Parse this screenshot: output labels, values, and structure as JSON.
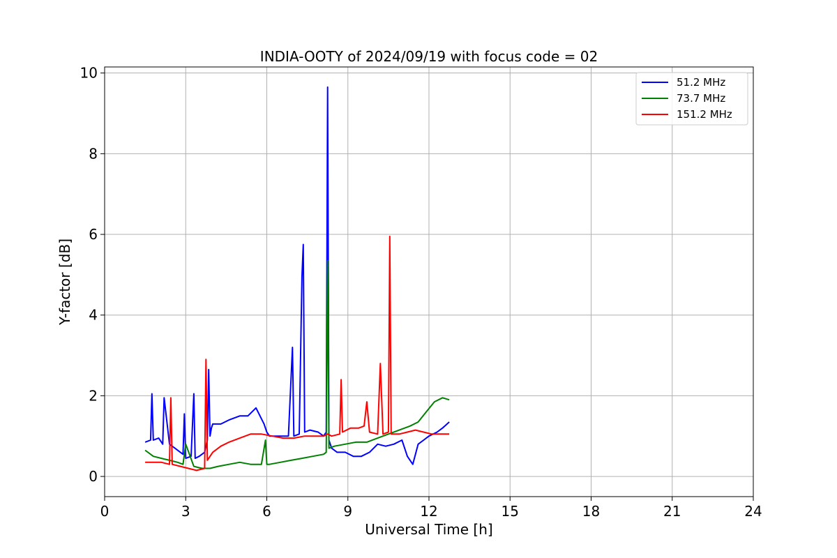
{
  "chart_data": {
    "type": "line",
    "title": "INDIA-OOTY of 2024/09/19 with focus code = 02",
    "xlabel": "Universal Time [h]",
    "ylabel": "Y-factor [dB]",
    "xlim": [
      0,
      24
    ],
    "ylim": [
      -0.5,
      10.15
    ],
    "xticks": [
      0,
      3,
      6,
      9,
      12,
      15,
      18,
      21,
      24
    ],
    "yticks": [
      0,
      2,
      4,
      6,
      8,
      10
    ],
    "grid": true,
    "legend_position": "top-right",
    "series": [
      {
        "name": "51.2 MHz",
        "color": "#0000ff",
        "x": [
          1.5,
          1.7,
          1.75,
          1.8,
          2.0,
          2.15,
          2.2,
          2.4,
          2.6,
          2.9,
          2.95,
          3.0,
          3.2,
          3.3,
          3.35,
          3.5,
          3.7,
          3.8,
          3.85,
          3.9,
          3.95,
          4.0,
          4.3,
          4.6,
          5.0,
          5.3,
          5.6,
          5.9,
          6.0,
          6.1,
          6.4,
          6.8,
          6.95,
          7.0,
          7.2,
          7.3,
          7.35,
          7.4,
          7.6,
          7.9,
          8.1,
          8.2,
          8.25,
          8.3,
          8.4,
          8.6,
          8.9,
          9.2,
          9.5,
          9.8,
          10.1,
          10.4,
          10.7,
          11.0,
          11.2,
          11.4,
          11.6,
          11.8,
          12.0,
          12.3,
          12.5,
          12.75
        ],
        "y": [
          0.85,
          0.9,
          2.05,
          0.9,
          0.95,
          0.8,
          1.95,
          0.8,
          0.7,
          0.55,
          1.55,
          0.45,
          0.5,
          2.05,
          0.45,
          0.5,
          0.6,
          0.9,
          2.65,
          1.0,
          1.2,
          1.3,
          1.3,
          1.4,
          1.5,
          1.5,
          1.7,
          1.3,
          1.1,
          1.0,
          1.0,
          1.0,
          3.2,
          1.0,
          1.05,
          4.95,
          5.75,
          1.1,
          1.15,
          1.1,
          1.0,
          1.1,
          9.65,
          0.9,
          0.7,
          0.6,
          0.6,
          0.5,
          0.5,
          0.6,
          0.8,
          0.75,
          0.8,
          0.9,
          0.5,
          0.3,
          0.8,
          0.9,
          1.0,
          1.1,
          1.2,
          1.35
        ]
      },
      {
        "name": "73.7 MHz",
        "color": "#008000",
        "x": [
          1.5,
          1.8,
          2.1,
          2.4,
          2.7,
          2.9,
          3.0,
          3.3,
          3.6,
          3.9,
          4.2,
          4.6,
          5.0,
          5.4,
          5.8,
          5.95,
          6.0,
          6.1,
          6.5,
          6.9,
          7.3,
          7.7,
          8.1,
          8.2,
          8.25,
          8.3,
          8.5,
          8.9,
          9.3,
          9.7,
          10.1,
          10.5,
          10.9,
          11.3,
          11.6,
          11.9,
          12.2,
          12.5,
          12.75
        ],
        "y": [
          0.65,
          0.5,
          0.45,
          0.4,
          0.35,
          0.3,
          0.8,
          0.25,
          0.2,
          0.2,
          0.25,
          0.3,
          0.35,
          0.3,
          0.3,
          0.9,
          0.3,
          0.3,
          0.35,
          0.4,
          0.45,
          0.5,
          0.55,
          0.6,
          5.35,
          0.7,
          0.75,
          0.8,
          0.85,
          0.85,
          0.95,
          1.05,
          1.15,
          1.25,
          1.35,
          1.6,
          1.85,
          1.95,
          1.9
        ]
      },
      {
        "name": "151.2 MHz",
        "color": "#ff0000",
        "x": [
          1.5,
          1.8,
          2.1,
          2.4,
          2.45,
          2.5,
          2.8,
          3.1,
          3.4,
          3.7,
          3.75,
          3.8,
          4.0,
          4.3,
          4.6,
          5.0,
          5.4,
          5.8,
          6.2,
          6.6,
          7.0,
          7.4,
          7.8,
          8.1,
          8.25,
          8.4,
          8.7,
          8.75,
          8.8,
          9.1,
          9.4,
          9.6,
          9.7,
          9.8,
          10.1,
          10.2,
          10.3,
          10.5,
          10.55,
          10.6,
          10.9,
          11.2,
          11.5,
          11.8,
          12.1,
          12.4,
          12.75
        ],
        "y": [
          0.35,
          0.35,
          0.35,
          0.3,
          1.95,
          0.3,
          0.25,
          0.2,
          0.15,
          0.2,
          2.9,
          0.4,
          0.6,
          0.75,
          0.85,
          0.95,
          1.05,
          1.05,
          1.0,
          0.95,
          0.95,
          1.0,
          1.0,
          1.0,
          1.05,
          1.0,
          1.05,
          2.4,
          1.1,
          1.2,
          1.2,
          1.25,
          1.85,
          1.1,
          1.05,
          2.8,
          1.05,
          1.1,
          5.95,
          1.05,
          1.05,
          1.1,
          1.15,
          1.1,
          1.05,
          1.05,
          1.05
        ]
      }
    ]
  }
}
